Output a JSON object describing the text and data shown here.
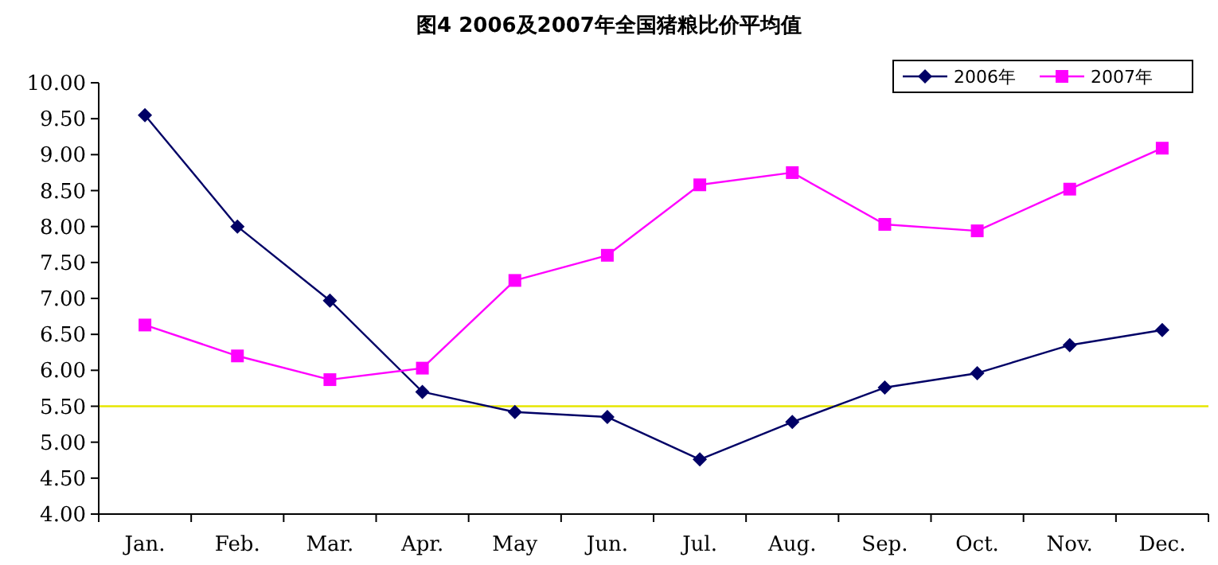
{
  "chart_data": {
    "type": "line",
    "title": "图4  2006及2007年全国猪粮比价平均值",
    "categories": [
      "Jan.",
      "Feb.",
      "Mar.",
      "Apr.",
      "May",
      "Jun.",
      "Jul.",
      "Aug.",
      "Sep.",
      "Oct.",
      "Nov.",
      "Dec."
    ],
    "series": [
      {
        "name": "2006年",
        "color": "#000066",
        "marker": "diamond",
        "values": [
          9.55,
          8.0,
          6.97,
          5.7,
          5.42,
          5.35,
          4.76,
          5.28,
          5.76,
          5.96,
          6.35,
          6.56
        ]
      },
      {
        "name": "2007年",
        "color": "#ff00ff",
        "marker": "square",
        "values": [
          6.63,
          6.2,
          5.87,
          6.03,
          7.25,
          7.6,
          8.58,
          8.75,
          8.03,
          7.94,
          8.52,
          9.09
        ]
      }
    ],
    "ylim": [
      4,
      10
    ],
    "yticks": [
      {
        "value": 4,
        "label": "4.00"
      },
      {
        "value": 4.5,
        "label": "4.50"
      },
      {
        "value": 5,
        "label": "5.00"
      },
      {
        "value": 5.5,
        "label": "5.50"
      },
      {
        "value": 6,
        "label": "6.00"
      },
      {
        "value": 6.5,
        "label": "6.50"
      },
      {
        "value": 7,
        "label": "7.00"
      },
      {
        "value": 7.5,
        "label": "7.50"
      },
      {
        "value": 8,
        "label": "8.00"
      },
      {
        "value": 8.5,
        "label": "8.50"
      },
      {
        "value": 9,
        "label": "9.00"
      },
      {
        "value": 9.5,
        "label": "9.50"
      },
      {
        "value": 10,
        "label": "10.00"
      }
    ],
    "ref_lines": [
      {
        "axis": "y",
        "value": 5.5,
        "color": "#e6e600"
      }
    ],
    "grid": false,
    "legend": "top right"
  }
}
